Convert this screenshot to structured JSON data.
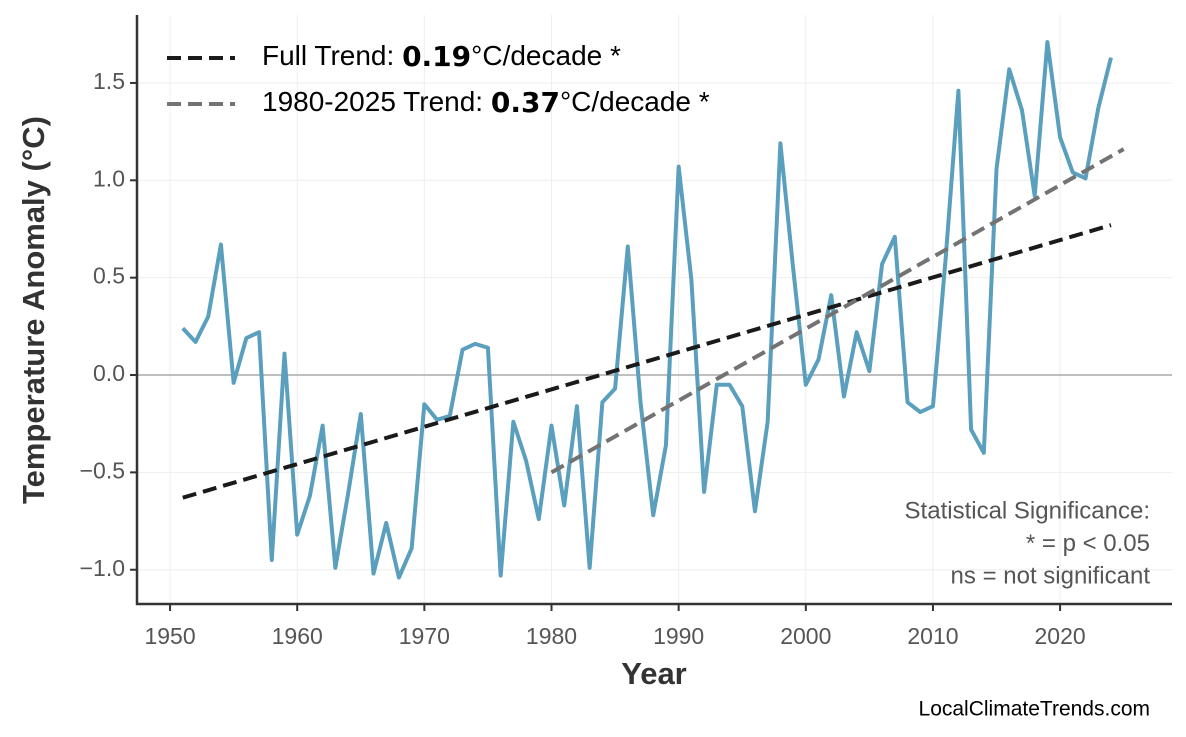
{
  "chart_data": {
    "type": "line",
    "x_label": "Year",
    "y_label": "Temperature Anomaly (°C)",
    "xlim": [
      1947.4,
      2028.8
    ],
    "ylim": [
      -1.176,
      1.849
    ],
    "xticks": [
      1950,
      1960,
      1970,
      1980,
      1990,
      2000,
      2010,
      2020
    ],
    "yticks": [
      {
        "value": -1.0,
        "label": "−1.0"
      },
      {
        "value": -0.5,
        "label": "−0.5"
      },
      {
        "value": 0.0,
        "label": "0.0"
      },
      0.5,
      {
        "value": 1.0,
        "label": "1.0"
      },
      1.5
    ],
    "grid": true,
    "zero_line": true,
    "legend": "upper left",
    "series": [
      {
        "color": "#5b9fbe",
        "x": [
          1951,
          1952,
          1953,
          1954,
          1955,
          1956,
          1957,
          1958,
          1959,
          1960,
          1961,
          1962,
          1963,
          1964,
          1965,
          1966,
          1967,
          1968,
          1969,
          1970,
          1971,
          1972,
          1973,
          1974,
          1975,
          1976,
          1977,
          1978,
          1979,
          1980,
          1981,
          1982,
          1983,
          1984,
          1985,
          1986,
          1987,
          1988,
          1989,
          1990,
          1991,
          1992,
          1993,
          1994,
          1995,
          1996,
          1997,
          1998,
          1999,
          2000,
          2001,
          2002,
          2003,
          2004,
          2005,
          2006,
          2007,
          2008,
          2009,
          2010,
          2011,
          2012,
          2013,
          2014,
          2015,
          2016,
          2017,
          2018,
          2019,
          2020,
          2021,
          2022,
          2023,
          2024
        ],
        "values": [
          0.24,
          0.17,
          0.3,
          0.67,
          -0.04,
          0.19,
          0.22,
          -0.95,
          0.11,
          -0.82,
          -0.62,
          -0.26,
          -0.99,
          -0.61,
          -0.2,
          -1.02,
          -0.76,
          -1.04,
          -0.89,
          -0.15,
          -0.23,
          -0.21,
          0.13,
          0.16,
          0.14,
          -1.03,
          -0.24,
          -0.44,
          -0.74,
          -0.26,
          -0.67,
          -0.16,
          -0.99,
          -0.14,
          -0.07,
          0.66,
          -0.14,
          -0.72,
          -0.36,
          1.07,
          0.49,
          -0.6,
          -0.05,
          -0.05,
          -0.16,
          -0.7,
          -0.24,
          1.19,
          0.55,
          -0.05,
          0.08,
          0.41,
          -0.11,
          0.22,
          0.02,
          0.57,
          0.71,
          -0.14,
          -0.19,
          -0.16,
          0.6,
          1.46,
          -0.28,
          -0.4,
          1.06,
          1.57,
          1.36,
          0.92,
          1.71,
          1.22,
          1.04,
          1.01,
          1.37,
          1.63
        ]
      },
      {
        "name": "Full Trend: ",
        "slope": 0.19,
        "unit": "°C/decade *",
        "color": "#1a1a1a",
        "dashed": true,
        "x": [
          1951,
          2024
        ],
        "values": [
          -0.63,
          0.77
        ]
      },
      {
        "name": "1980-2025 Trend: ",
        "slope": 0.37,
        "unit": "°C/decade *",
        "color": "#737373",
        "dashed": true,
        "x": [
          1980,
          2025
        ],
        "values": [
          -0.5,
          1.16
        ]
      }
    ],
    "annotation": [
      "Statistical Significance:",
      "* = p < 0.05",
      "ns = not significant"
    ],
    "source": "LocalClimateTrends.com"
  }
}
